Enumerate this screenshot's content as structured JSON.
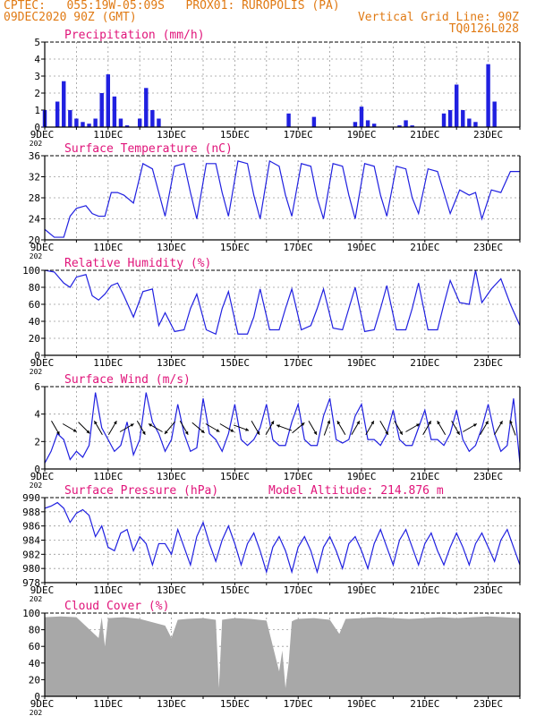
{
  "header": {
    "line1": "CPTEC:   055:19W-05:09S   PROX01: RUROPOLIS (PA)",
    "line2_left": "09DEC2020 90Z (GMT)",
    "line2_right": "Vertical Grid Line: 90Z",
    "line3_right": "TQ0126L028"
  },
  "colors": {
    "header": "#e07a14",
    "title": "#e0147a",
    "series": "#2020e0",
    "cloud": "#a8a8a8"
  },
  "x_labels": [
    "9DEC",
    "11DEC",
    "13DEC",
    "15DEC",
    "17DEC",
    "19DEC",
    "21DEC",
    "23DEC"
  ],
  "year_stub": "202",
  "chart_data": [
    {
      "type": "bar",
      "title": "Precipitation (mm/h)",
      "ylim": [
        0,
        5
      ],
      "yticks": [
        "0",
        "1",
        "2",
        "3",
        "4",
        "5"
      ],
      "x_days": [
        9,
        24
      ],
      "x": [
        9.0,
        9.2,
        9.4,
        9.6,
        9.8,
        10.0,
        10.2,
        10.4,
        10.6,
        10.8,
        11.0,
        11.2,
        11.4,
        11.6,
        11.8,
        12.0,
        12.2,
        12.4,
        12.6,
        12.8,
        13.0,
        16.7,
        17.5,
        18.8,
        19.0,
        19.2,
        19.4,
        20.2,
        20.4,
        20.6,
        21.6,
        21.8,
        22.0,
        22.2,
        22.4,
        22.6,
        22.8,
        23.0,
        23.2
      ],
      "values": [
        1.0,
        0.0,
        1.5,
        2.7,
        1.0,
        0.5,
        0.3,
        0.2,
        0.5,
        2.0,
        3.1,
        1.8,
        0.5,
        0.1,
        0.0,
        0.5,
        2.3,
        1.0,
        0.5,
        0.0,
        0.0,
        0.8,
        0.6,
        0.3,
        1.2,
        0.4,
        0.2,
        0.1,
        0.4,
        0.1,
        0.8,
        1.0,
        2.5,
        1.0,
        0.5,
        0.3,
        0.0,
        3.7,
        1.5
      ]
    },
    {
      "type": "line",
      "title": "Surface Temperature (nC)",
      "ylim": [
        20,
        36
      ],
      "yticks": [
        "20",
        "24",
        "28",
        "32",
        "36"
      ],
      "x_days": [
        9,
        24
      ],
      "series": [
        {
          "x": [
            9.0,
            9.3,
            9.6,
            9.8,
            10.0,
            10.3,
            10.5,
            10.7,
            10.9,
            11.1,
            11.3,
            11.5,
            11.8,
            12.1,
            12.4,
            12.6,
            12.8,
            13.1,
            13.4,
            13.6,
            13.8,
            14.1,
            14.4,
            14.6,
            14.8,
            15.1,
            15.4,
            15.6,
            15.8,
            16.1,
            16.4,
            16.6,
            16.8,
            17.1,
            17.4,
            17.6,
            17.8,
            18.1,
            18.4,
            18.6,
            18.8,
            19.1,
            19.4,
            19.6,
            19.8,
            20.1,
            20.4,
            20.6,
            20.8,
            21.1,
            21.4,
            21.6,
            21.8,
            22.1,
            22.4,
            22.6,
            22.8,
            23.1,
            23.4,
            23.7,
            24.0
          ],
          "values": [
            22.0,
            20.5,
            20.5,
            24.5,
            26.0,
            26.5,
            25.0,
            24.5,
            24.5,
            29.0,
            29.0,
            28.5,
            27.0,
            34.5,
            33.5,
            29.0,
            24.5,
            34.0,
            34.5,
            29.0,
            24.0,
            34.5,
            34.5,
            29.0,
            24.5,
            35.0,
            34.5,
            28.5,
            24.0,
            35.0,
            34.0,
            28.5,
            24.5,
            34.5,
            34.0,
            28.0,
            24.0,
            34.5,
            34.0,
            28.5,
            24.0,
            34.5,
            34.0,
            28.5,
            24.5,
            34.0,
            33.5,
            28.0,
            25.0,
            33.5,
            33.0,
            29.0,
            25.0,
            29.5,
            28.5,
            29.0,
            24.0,
            29.5,
            29.0,
            33.0,
            33.0
          ]
        }
      ]
    },
    {
      "type": "line",
      "title": "Relative Humidity (%)",
      "ylim": [
        0,
        100
      ],
      "yticks": [
        "0",
        "20",
        "40",
        "60",
        "80",
        "100"
      ],
      "x_days": [
        9,
        24
      ],
      "series": [
        {
          "x": [
            9.0,
            9.3,
            9.6,
            9.8,
            10.0,
            10.3,
            10.5,
            10.7,
            10.9,
            11.1,
            11.3,
            11.5,
            11.8,
            12.1,
            12.4,
            12.6,
            12.8,
            13.1,
            13.4,
            13.6,
            13.8,
            14.1,
            14.4,
            14.6,
            14.8,
            15.1,
            15.4,
            15.6,
            15.8,
            16.1,
            16.4,
            16.6,
            16.8,
            17.1,
            17.4,
            17.6,
            17.8,
            18.1,
            18.4,
            18.6,
            18.8,
            19.1,
            19.4,
            19.6,
            19.8,
            20.1,
            20.4,
            20.6,
            20.8,
            21.1,
            21.4,
            21.6,
            21.8,
            22.1,
            22.4,
            22.6,
            22.8,
            23.1,
            23.4,
            23.7,
            24.0
          ],
          "values": [
            100,
            98,
            85,
            80,
            92,
            95,
            70,
            65,
            72,
            82,
            85,
            70,
            45,
            75,
            78,
            35,
            50,
            28,
            30,
            55,
            72,
            30,
            25,
            55,
            75,
            25,
            25,
            45,
            78,
            30,
            30,
            55,
            78,
            30,
            35,
            55,
            78,
            32,
            30,
            55,
            80,
            28,
            30,
            55,
            82,
            30,
            30,
            55,
            85,
            30,
            30,
            60,
            88,
            62,
            60,
            100,
            62,
            78,
            90,
            60,
            35
          ]
        }
      ]
    },
    {
      "type": "line",
      "title": "Surface Wind (m/s)",
      "ylim": [
        0,
        7
      ],
      "yticks": [
        "0",
        "2",
        "4",
        "6"
      ],
      "x_days": [
        9,
        24
      ],
      "series": [
        {
          "x": [
            9.0,
            9.2,
            9.4,
            9.6,
            9.8,
            10.0,
            10.2,
            10.4,
            10.6,
            10.8,
            11.0,
            11.2,
            11.4,
            11.6,
            11.8,
            12.0,
            12.2,
            12.4,
            12.6,
            12.8,
            13.0,
            13.2,
            13.4,
            13.6,
            13.8,
            14.0,
            14.2,
            14.4,
            14.6,
            14.8,
            15.0,
            15.2,
            15.4,
            15.6,
            15.8,
            16.0,
            16.2,
            16.4,
            16.6,
            16.8,
            17.0,
            17.2,
            17.4,
            17.6,
            17.8,
            18.0,
            18.2,
            18.4,
            18.6,
            18.8,
            19.0,
            19.2,
            19.4,
            19.6,
            19.8,
            20.0,
            20.2,
            20.4,
            20.6,
            20.8,
            21.0,
            21.2,
            21.4,
            21.6,
            21.8,
            22.0,
            22.2,
            22.4,
            22.6,
            22.8,
            23.0,
            23.2,
            23.4,
            23.6,
            23.8,
            24.0
          ],
          "values": [
            0.5,
            1.5,
            3.0,
            2.5,
            0.8,
            1.5,
            1.0,
            2.0,
            6.5,
            3.5,
            2.5,
            1.5,
            2.0,
            4.0,
            1.2,
            2.5,
            6.5,
            4.0,
            3.0,
            1.5,
            2.5,
            5.5,
            3.0,
            1.5,
            1.8,
            6.0,
            3.0,
            2.5,
            1.5,
            3.0,
            5.5,
            2.5,
            2.0,
            2.5,
            3.5,
            5.5,
            2.5,
            2.0,
            2.0,
            4.0,
            5.5,
            2.5,
            2.0,
            2.0,
            4.5,
            6.0,
            2.5,
            2.2,
            2.5,
            4.5,
            5.5,
            2.5,
            2.5,
            2.0,
            3.0,
            5.0,
            2.5,
            2.0,
            2.0,
            3.5,
            5.0,
            2.5,
            2.5,
            2.0,
            3.0,
            5.0,
            2.5,
            1.5,
            2.0,
            3.5,
            5.5,
            3.0,
            1.5,
            2.0,
            6.0,
            0.5
          ]
        }
      ]
    },
    {
      "type": "line",
      "title": "Surface Pressure (hPa)",
      "annotation": "Model Altitude: 214.876  m",
      "ylim": [
        978,
        990
      ],
      "yticks": [
        "978",
        "980",
        "982",
        "984",
        "986",
        "988",
        "990"
      ],
      "x_days": [
        9,
        24
      ],
      "series": [
        {
          "x": [
            9.0,
            9.2,
            9.4,
            9.6,
            9.8,
            10.0,
            10.2,
            10.4,
            10.6,
            10.8,
            11.0,
            11.2,
            11.4,
            11.6,
            11.8,
            12.0,
            12.2,
            12.4,
            12.6,
            12.8,
            13.0,
            13.2,
            13.4,
            13.6,
            13.8,
            14.0,
            14.2,
            14.4,
            14.6,
            14.8,
            15.0,
            15.2,
            15.4,
            15.6,
            15.8,
            16.0,
            16.2,
            16.4,
            16.6,
            16.8,
            17.0,
            17.2,
            17.4,
            17.6,
            17.8,
            18.0,
            18.2,
            18.4,
            18.6,
            18.8,
            19.0,
            19.2,
            19.4,
            19.6,
            19.8,
            20.0,
            20.2,
            20.4,
            20.6,
            20.8,
            21.0,
            21.2,
            21.4,
            21.6,
            21.8,
            22.0,
            22.2,
            22.4,
            22.6,
            22.8,
            23.0,
            23.2,
            23.4,
            23.6,
            23.8,
            24.0
          ],
          "values": [
            988.5,
            988.8,
            989.3,
            988.5,
            986.5,
            987.8,
            988.3,
            987.5,
            984.5,
            986.0,
            983.0,
            982.5,
            985.0,
            985.5,
            982.5,
            984.5,
            983.5,
            980.5,
            983.5,
            983.5,
            982.0,
            985.5,
            983.0,
            980.5,
            984.5,
            986.5,
            983.5,
            981.0,
            984.0,
            986.0,
            983.5,
            980.5,
            983.5,
            985.0,
            982.5,
            979.5,
            983.0,
            984.5,
            982.5,
            979.5,
            983.0,
            984.5,
            982.5,
            979.5,
            983.0,
            984.5,
            982.5,
            980.0,
            983.5,
            984.5,
            982.5,
            980.0,
            983.5,
            985.5,
            983.0,
            980.5,
            984.0,
            985.5,
            983.0,
            980.5,
            983.5,
            985.0,
            982.5,
            980.5,
            983.0,
            985.0,
            983.0,
            980.5,
            983.5,
            985.0,
            983.0,
            981.0,
            984.0,
            985.5,
            983.0,
            980.5
          ]
        }
      ]
    },
    {
      "type": "area",
      "title": "Cloud Cover (%)",
      "ylim": [
        0,
        100
      ],
      "yticks": [
        "0",
        "20",
        "40",
        "60",
        "80",
        "100"
      ],
      "x_days": [
        9,
        24
      ],
      "x": [
        9.0,
        9.5,
        10.0,
        10.7,
        10.8,
        10.9,
        11.0,
        11.5,
        12.0,
        12.8,
        13.0,
        13.2,
        13.5,
        14.0,
        14.4,
        14.5,
        14.6,
        15.0,
        15.5,
        16.0,
        16.4,
        16.5,
        16.6,
        16.7,
        16.8,
        16.9,
        17.0,
        17.5,
        18.0,
        18.3,
        18.5,
        19.0,
        19.5,
        20.0,
        20.5,
        21.0,
        21.5,
        22.0,
        22.5,
        23.0,
        23.5,
        24.0
      ],
      "values": [
        95,
        96,
        95,
        70,
        95,
        60,
        94,
        95,
        93,
        85,
        70,
        92,
        93,
        94,
        92,
        10,
        92,
        94,
        93,
        91,
        30,
        55,
        10,
        40,
        90,
        92,
        93,
        94,
        92,
        75,
        93,
        94,
        95,
        94,
        93,
        94,
        95,
        94,
        95,
        96,
        95,
        94
      ]
    }
  ],
  "wind_arrows_deg": [
    300,
    330,
    315,
    120,
    60,
    30,
    300,
    150,
    230,
    300,
    320,
    330,
    330,
    340,
    300,
    60,
    160,
    40,
    300,
    70,
    120,
    60,
    60,
    300,
    300,
    30,
    60,
    120,
    300,
    30,
    60,
    60,
    110
  ]
}
